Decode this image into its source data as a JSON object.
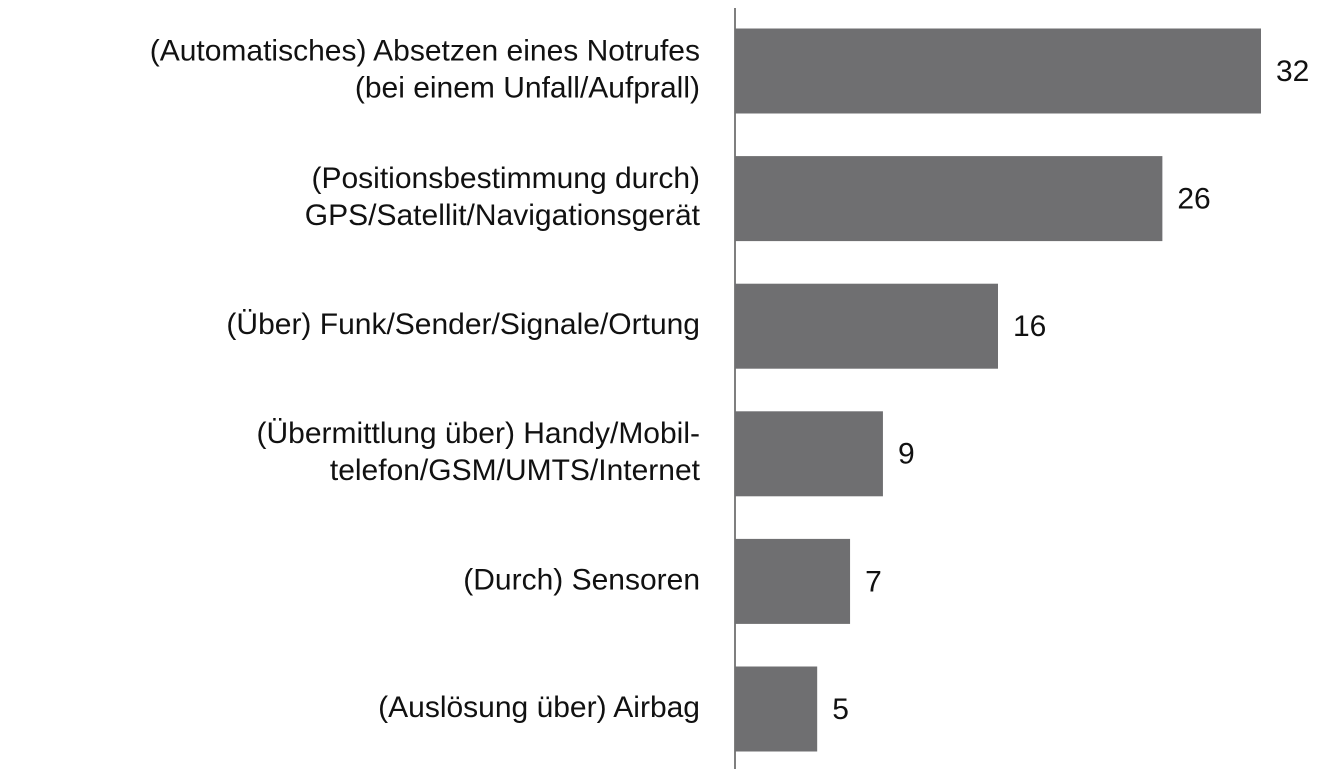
{
  "chart_data": {
    "type": "bar",
    "orientation": "horizontal",
    "categories": [
      [
        "(Automatisches) Absetzen eines Notrufes",
        "(bei einem Unfall/Aufprall)"
      ],
      [
        "(Positionsbestimmung durch)",
        "GPS/Satellit/Navigationsgerät"
      ],
      [
        "(Über) Funk/Sender/Signale/Ortung"
      ],
      [
        "(Übermittlung über) Handy/Mobil-",
        "telefon/GSM/UMTS/Internet"
      ],
      [
        "(Durch) Sensoren"
      ],
      [
        "(Auslösung über) Airbag"
      ]
    ],
    "values": [
      32,
      26,
      16,
      9,
      7,
      5
    ],
    "color": "#6f6f71"
  }
}
